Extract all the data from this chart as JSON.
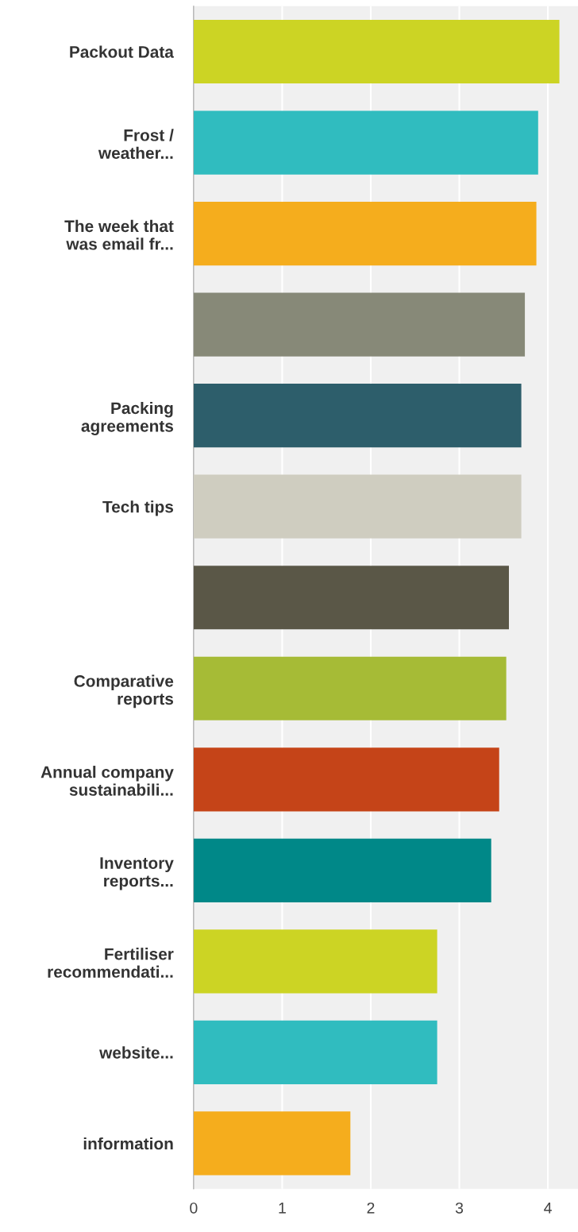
{
  "chart_data": {
    "type": "bar",
    "orientation": "horizontal",
    "categories": [
      "Packout Data",
      "Frost /\nweather...",
      "The week that\nwas email fr...",
      null,
      "Packing\nagreements",
      "Tech tips",
      null,
      "Comparative\nreports",
      "Annual company\nsustainabili...",
      "Inventory\nreports...",
      "Fertiliser\nrecommendati...",
      "website...",
      "information"
    ],
    "values": [
      4.13,
      3.89,
      3.87,
      3.74,
      3.7,
      3.7,
      3.56,
      3.53,
      3.45,
      3.36,
      2.75,
      2.75,
      1.77
    ],
    "colors": [
      "#ccd424",
      "#30bcbf",
      "#f5ad1d",
      "#878978",
      "#2d5e6b",
      "#cfcdc0",
      "#5a5747",
      "#a6bb36",
      "#c54418",
      "#008888",
      "#ccd424",
      "#30bcbf",
      "#f5ad1d"
    ],
    "xlim": [
      0,
      4.34
    ],
    "xticks": [
      0,
      1,
      2,
      3,
      4
    ],
    "grid": "x"
  }
}
